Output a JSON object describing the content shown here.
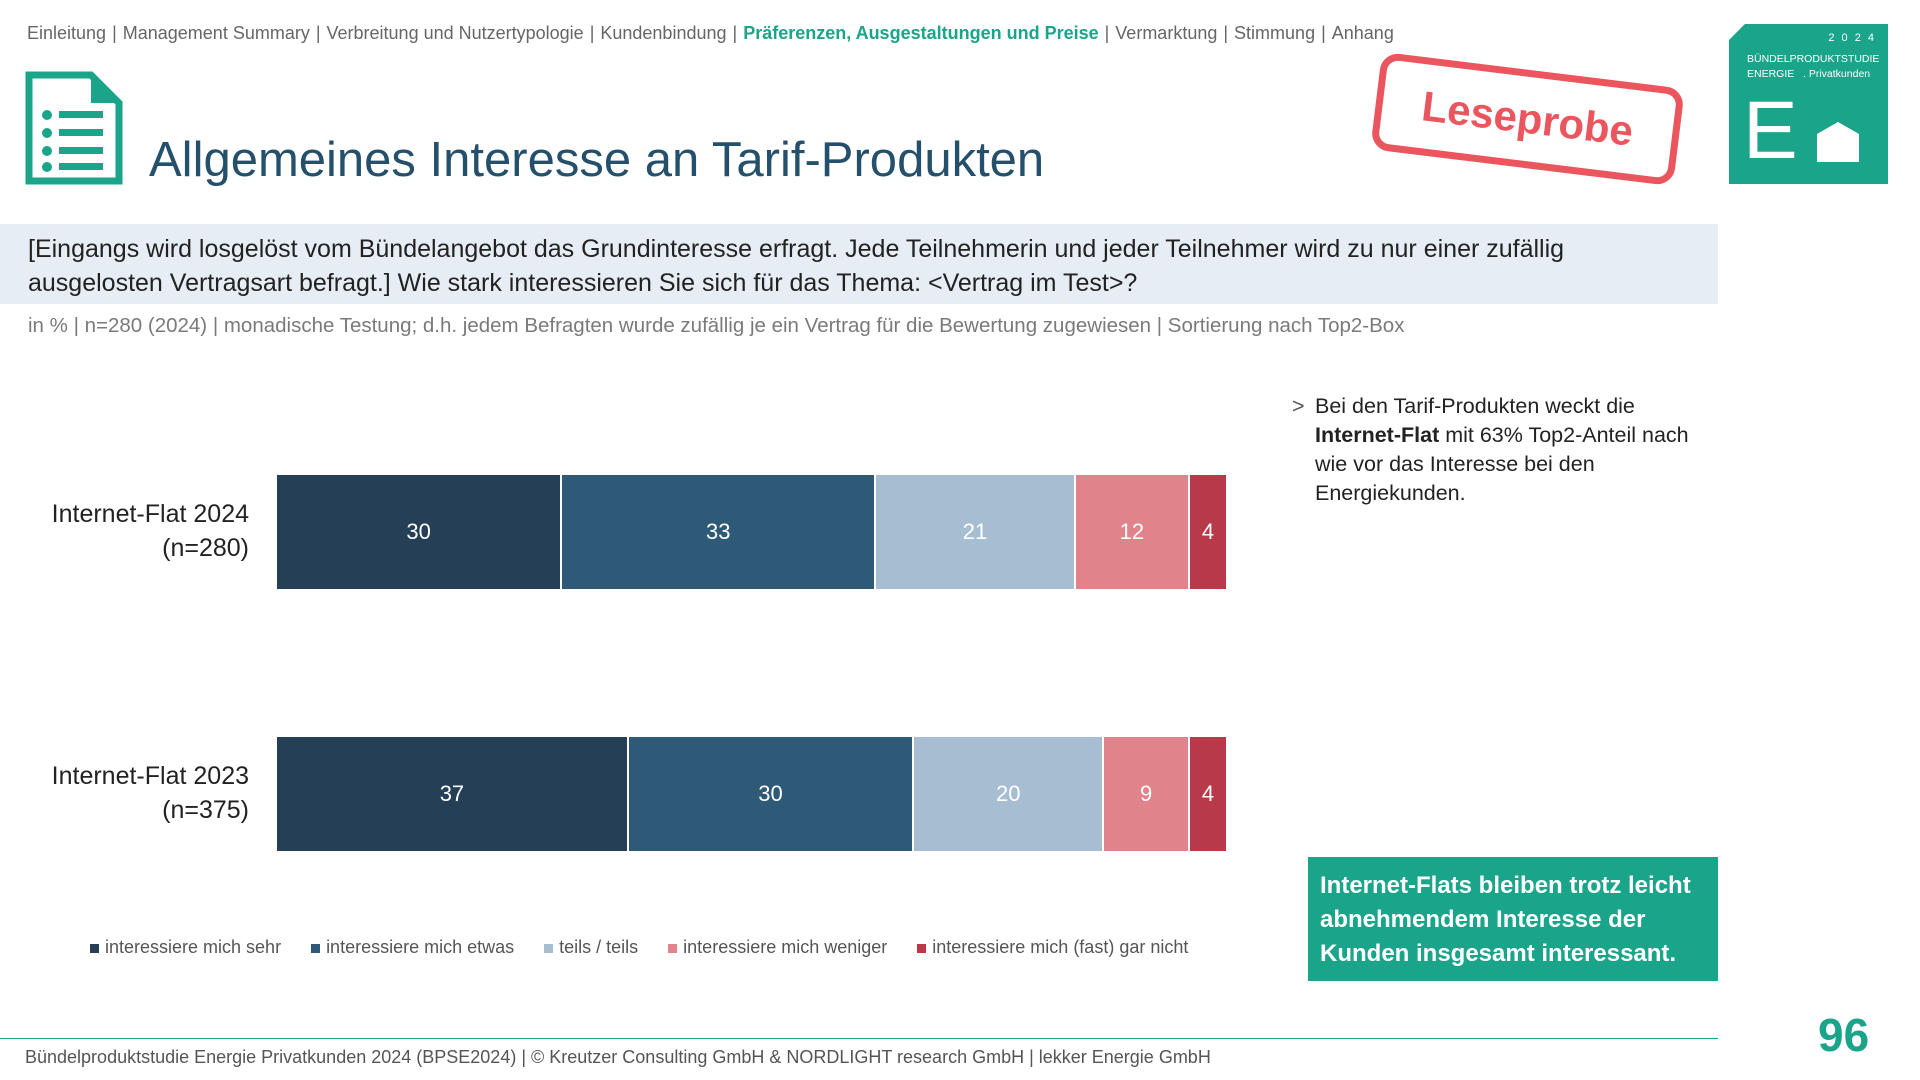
{
  "nav": {
    "items": [
      "Einleitung",
      "Management Summary",
      "Verbreitung und Nutzertypologie",
      "Kundenbindung",
      "Präferenzen, Ausgestaltungen und Preise",
      "Vermarktung",
      "Stimmung",
      "Anhang"
    ],
    "active_index": 4
  },
  "title": "Allgemeines Interesse an Tarif-Produkten",
  "stamp": "Leseprobe",
  "logo": {
    "year": "2 0 2 4",
    "line1": "BÜNDELPRODUKTSTUDIE",
    "line2": "ENERGIE   . Privatkunden",
    "letter": "E"
  },
  "question": "[Eingangs wird losgelöst vom Bündelangebot das Grundinteresse erfragt. Jede Teilnehmerin und jeder Teilnehmer wird zu nur einer zufällig ausgelosten Vertragsart befragt.] Wie stark interessieren Sie sich für das Thema: <Vertrag im Test>?",
  "subtitle": "in % | n=280 (2024) | monadische Testung; d.h. jedem Befragten wurde zufällig je ein Vertrag für die Bewertung zugewiesen | Sortierung nach Top2-Box",
  "chart_data": {
    "type": "bar",
    "orientation": "horizontal",
    "stacked": true,
    "unit": "%",
    "categories": [
      {
        "line1": "Internet-Flat 2024",
        "line2": "(n=280)"
      },
      {
        "line1": "Internet-Flat 2023",
        "line2": "(n=375)"
      }
    ],
    "series": [
      {
        "name": "interessiere mich sehr",
        "color": "#243f56",
        "values": [
          30,
          37
        ]
      },
      {
        "name": "interessiere mich etwas",
        "color": "#2e5a78",
        "values": [
          33,
          30
        ]
      },
      {
        "name": "teils / teils",
        "color": "#a7bdd1",
        "values": [
          21,
          20
        ]
      },
      {
        "name": "interessiere mich weniger",
        "color": "#e0838b",
        "values": [
          12,
          9
        ]
      },
      {
        "name": "interessiere mich (fast) gar nicht",
        "color": "#b83a48",
        "values": [
          4,
          4
        ]
      }
    ],
    "legend_position": "bottom"
  },
  "note": {
    "arrow": ">",
    "pre": "Bei den Tarif-Produkten weckt die ",
    "bold": "Internet-Flat",
    "post": " mit 63% Top2-Anteil nach wie vor das Interesse bei den Energiekunden."
  },
  "conclusion": "Internet-Flats bleiben trotz leicht abnehmendem Interesse der Kunden insgesamt interessant.",
  "footer": "Bündelproduktstudie Energie Privatkunden 2024 (BPSE2024) | © Kreutzer Consulting GmbH & NORDLIGHT research GmbH | lekker Energie GmbH",
  "page_number": "96"
}
